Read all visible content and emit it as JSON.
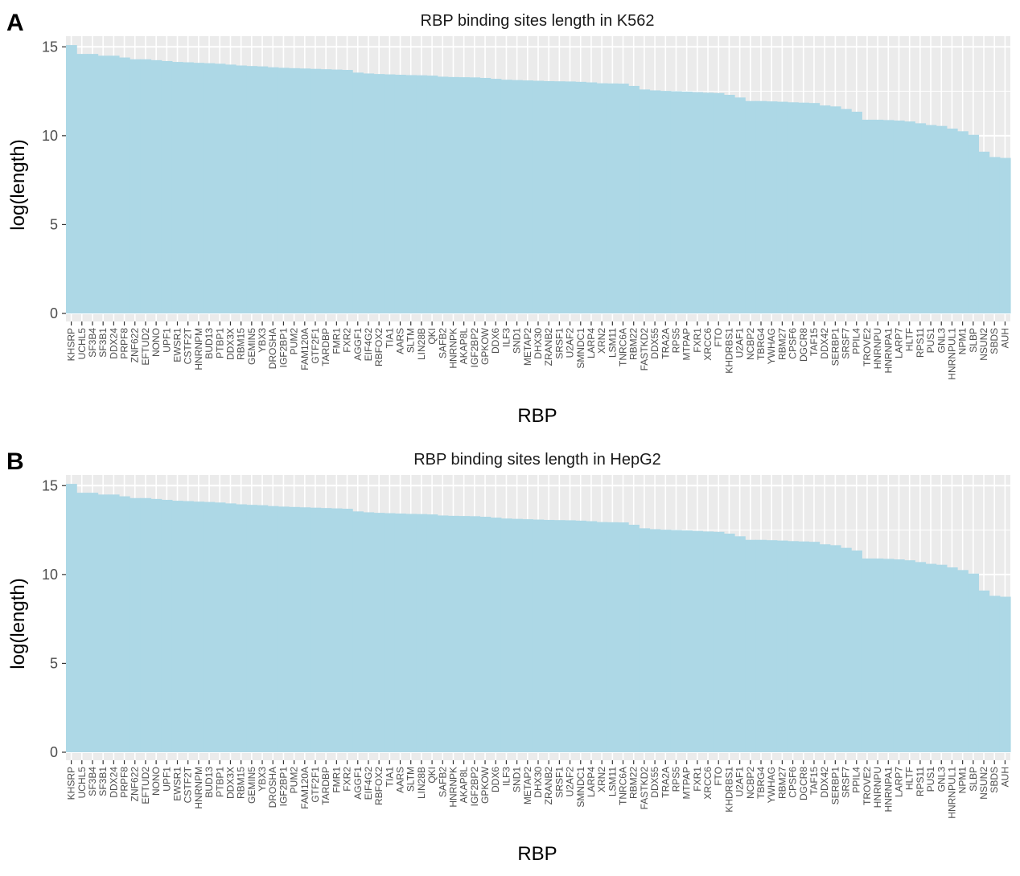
{
  "panels": [
    "A",
    "B"
  ],
  "chart_data": [
    {
      "type": "bar",
      "title": "RBP binding sites length in K562",
      "xlabel": "RBP",
      "ylabel": "log(length)",
      "ylim": [
        0,
        15.6
      ],
      "yticks": [
        0,
        5,
        10,
        15
      ],
      "grid": true,
      "bar_color": "#add8e6",
      "panel_bg": "#ebebeb",
      "categories": [
        "KHSRP",
        "UCHL5",
        "SF3B4",
        "SF3B1",
        "DDX24",
        "PRPF8",
        "ZNF622",
        "EFTUD2",
        "NONO",
        "UPF1",
        "EWSR1",
        "CSTF2T",
        "HNRNPM",
        "BUD13",
        "PTBP1",
        "DDX3X",
        "RBM15",
        "GEMIN5",
        "YBX3",
        "DROSHA",
        "IGF2BP1",
        "PUM2",
        "FAM120A",
        "GTF2F1",
        "TARDBP",
        "FMR1",
        "FXR2",
        "AGGF1",
        "EIF4G2",
        "RBFOX2",
        "TIA1",
        "AARS",
        "SLTM",
        "LIN28B",
        "QKI",
        "SAFB2",
        "HNRNPK",
        "AKAP8L",
        "IGF2BP2",
        "GPKOW",
        "DDX6",
        "ILF3",
        "SND1",
        "METAP2",
        "DHX30",
        "ZRANB2",
        "SRSF1",
        "U2AF2",
        "SMNDC1",
        "LARP4",
        "XRN2",
        "LSM11",
        "TNRC6A",
        "RBM22",
        "FASTKD2",
        "DDX55",
        "TRA2A",
        "RPS5",
        "MTPAP",
        "FXR1",
        "XRCC6",
        "FTO",
        "KHDRBS1",
        "U2AF1",
        "NCBP2",
        "TBRG4",
        "YWHAG",
        "RBM27",
        "CPSF6",
        "DGCR8",
        "TAF15",
        "DDX42",
        "SERBP1",
        "SRSF7",
        "PPIL4",
        "TROVE2",
        "HNRNPU",
        "HNRNPA1",
        "LARP7",
        "HLTF",
        "RPS11",
        "PUS1",
        "GNL3",
        "HNRNPUL1",
        "NPM1",
        "SLBP",
        "NSUN2",
        "SBDS",
        "AUH"
      ],
      "values": [
        15.1,
        14.6,
        14.6,
        14.5,
        14.5,
        14.4,
        14.3,
        14.3,
        14.25,
        14.2,
        14.15,
        14.13,
        14.1,
        14.08,
        14.05,
        14.0,
        13.95,
        13.92,
        13.9,
        13.85,
        13.82,
        13.8,
        13.78,
        13.76,
        13.74,
        13.72,
        13.7,
        13.55,
        13.5,
        13.47,
        13.45,
        13.43,
        13.41,
        13.4,
        13.38,
        13.32,
        13.3,
        13.29,
        13.28,
        13.25,
        13.2,
        13.15,
        13.13,
        13.11,
        13.09,
        13.07,
        13.06,
        13.05,
        13.03,
        13.0,
        12.95,
        12.94,
        12.93,
        12.8,
        12.6,
        12.55,
        12.52,
        12.5,
        12.48,
        12.45,
        12.42,
        12.4,
        12.3,
        12.15,
        11.95,
        11.95,
        11.93,
        11.91,
        11.88,
        11.86,
        11.84,
        11.7,
        11.65,
        11.5,
        11.35,
        10.9,
        10.9,
        10.88,
        10.85,
        10.8,
        10.7,
        10.6,
        10.55,
        10.4,
        10.25,
        10.05,
        9.1,
        8.8,
        8.75
      ]
    },
    {
      "type": "bar",
      "title": "RBP binding sites length in HepG2",
      "xlabel": "RBP",
      "ylabel": "log(length)",
      "ylim": [
        0,
        15.6
      ],
      "yticks": [
        0,
        5,
        10,
        15
      ],
      "grid": true,
      "bar_color": "#add8e6",
      "panel_bg": "#ebebeb",
      "categories": [
        "KHSRP",
        "UCHL5",
        "SF3B4",
        "SF3B1",
        "DDX24",
        "PRPF8",
        "ZNF622",
        "EFTUD2",
        "NONO",
        "UPF1",
        "EWSR1",
        "CSTF2T",
        "HNRNPM",
        "BUD13",
        "PTBP1",
        "DDX3X",
        "RBM15",
        "GEMIN5",
        "YBX3",
        "DROSHA",
        "IGF2BP1",
        "PUM2",
        "FAM120A",
        "GTF2F1",
        "TARDBP",
        "FMR1",
        "FXR2",
        "AGGF1",
        "EIF4G2",
        "RBFOX2",
        "TIA1",
        "AARS",
        "SLTM",
        "LIN28B",
        "QKI",
        "SAFB2",
        "HNRNPK",
        "AKAP8L",
        "IGF2BP2",
        "GPKOW",
        "DDX6",
        "ILF3",
        "SND1",
        "METAP2",
        "DHX30",
        "ZRANB2",
        "SRSF1",
        "U2AF2",
        "SMNDC1",
        "LARP4",
        "XRN2",
        "LSM11",
        "TNRC6A",
        "RBM22",
        "FASTKD2",
        "DDX55",
        "TRA2A",
        "RPS5",
        "MTPAP",
        "FXR1",
        "XRCC6",
        "FTO",
        "KHDRBS1",
        "U2AF1",
        "NCBP2",
        "TBRG4",
        "YWHAG",
        "RBM27",
        "CPSF6",
        "DGCR8",
        "TAF15",
        "DDX42",
        "SERBP1",
        "SRSF7",
        "PPIL4",
        "TROVE2",
        "HNRNPU",
        "HNRNPA1",
        "LARP7",
        "HLTF",
        "RPS11",
        "PUS1",
        "GNL3",
        "HNRNPUL1",
        "NPM1",
        "SLBP",
        "NSUN2",
        "SBDS",
        "AUH"
      ],
      "values": [
        15.1,
        14.6,
        14.6,
        14.5,
        14.5,
        14.4,
        14.3,
        14.3,
        14.25,
        14.2,
        14.15,
        14.13,
        14.1,
        14.08,
        14.05,
        14.0,
        13.95,
        13.92,
        13.9,
        13.85,
        13.82,
        13.8,
        13.78,
        13.76,
        13.74,
        13.72,
        13.7,
        13.55,
        13.5,
        13.47,
        13.45,
        13.43,
        13.41,
        13.4,
        13.38,
        13.32,
        13.3,
        13.29,
        13.28,
        13.25,
        13.2,
        13.15,
        13.13,
        13.11,
        13.09,
        13.07,
        13.06,
        13.05,
        13.03,
        13.0,
        12.95,
        12.94,
        12.93,
        12.8,
        12.6,
        12.55,
        12.52,
        12.5,
        12.48,
        12.45,
        12.42,
        12.4,
        12.3,
        12.15,
        11.95,
        11.95,
        11.93,
        11.91,
        11.88,
        11.86,
        11.84,
        11.7,
        11.65,
        11.5,
        11.35,
        10.9,
        10.9,
        10.88,
        10.85,
        10.8,
        10.7,
        10.6,
        10.55,
        10.4,
        10.25,
        10.05,
        9.1,
        8.8,
        8.75
      ]
    }
  ]
}
